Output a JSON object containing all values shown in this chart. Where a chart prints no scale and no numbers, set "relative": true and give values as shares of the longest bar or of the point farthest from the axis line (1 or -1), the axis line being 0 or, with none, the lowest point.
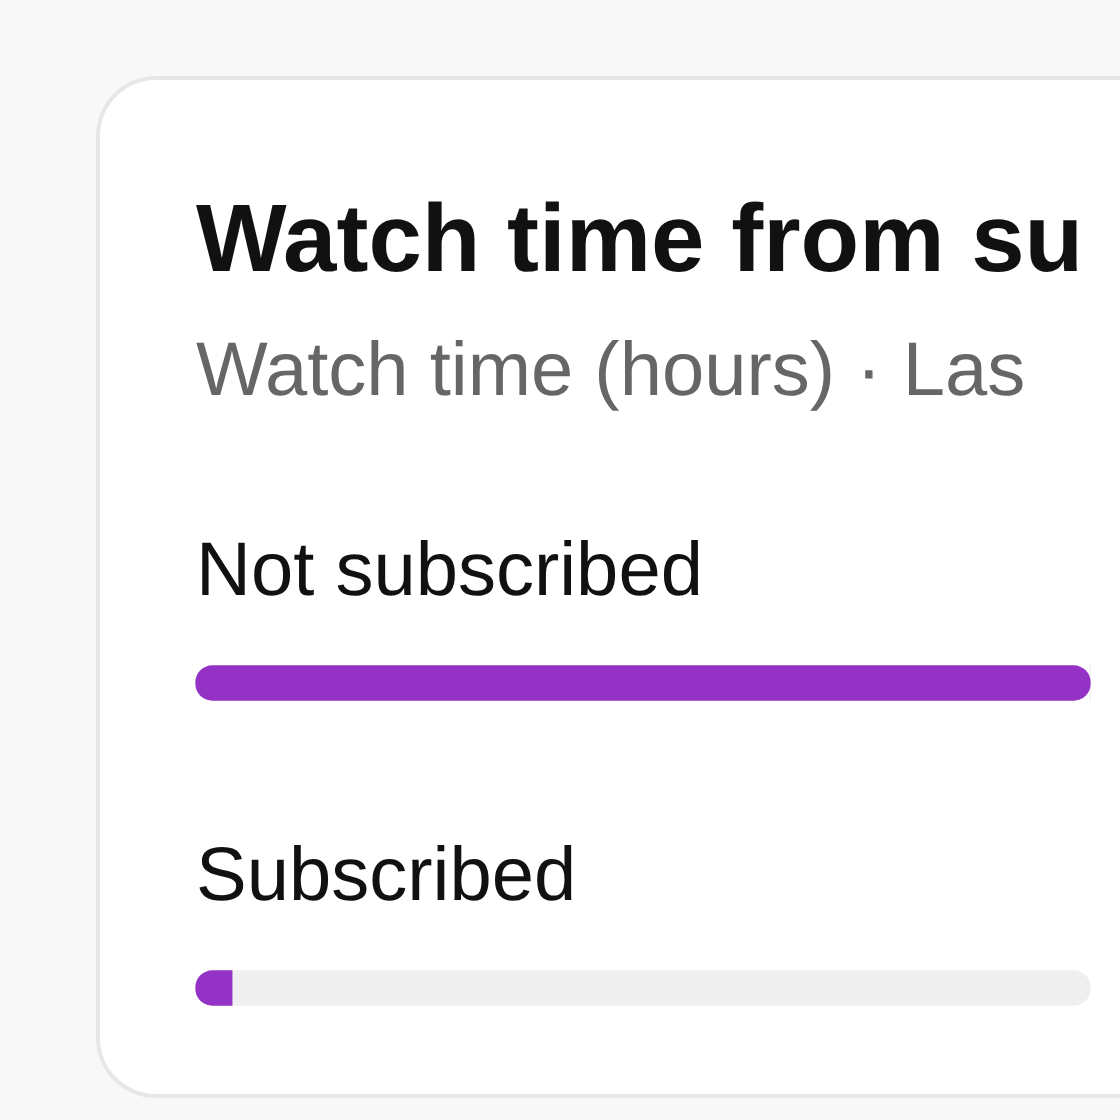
{
  "chart_data": {
    "type": "bar",
    "orientation": "horizontal",
    "relative": true,
    "stacked": true,
    "title": "Watch time from su",
    "subtitle": "Watch time (hours) · Las",
    "categories": [
      "Not subscribed",
      "Subscribed"
    ],
    "series": [
      {
        "color": "#9332c4",
        "values": [
          1,
          0.04
        ]
      },
      {
        "color": "#efefef",
        "values": [
          0,
          0.96
        ]
      }
    ]
  }
}
